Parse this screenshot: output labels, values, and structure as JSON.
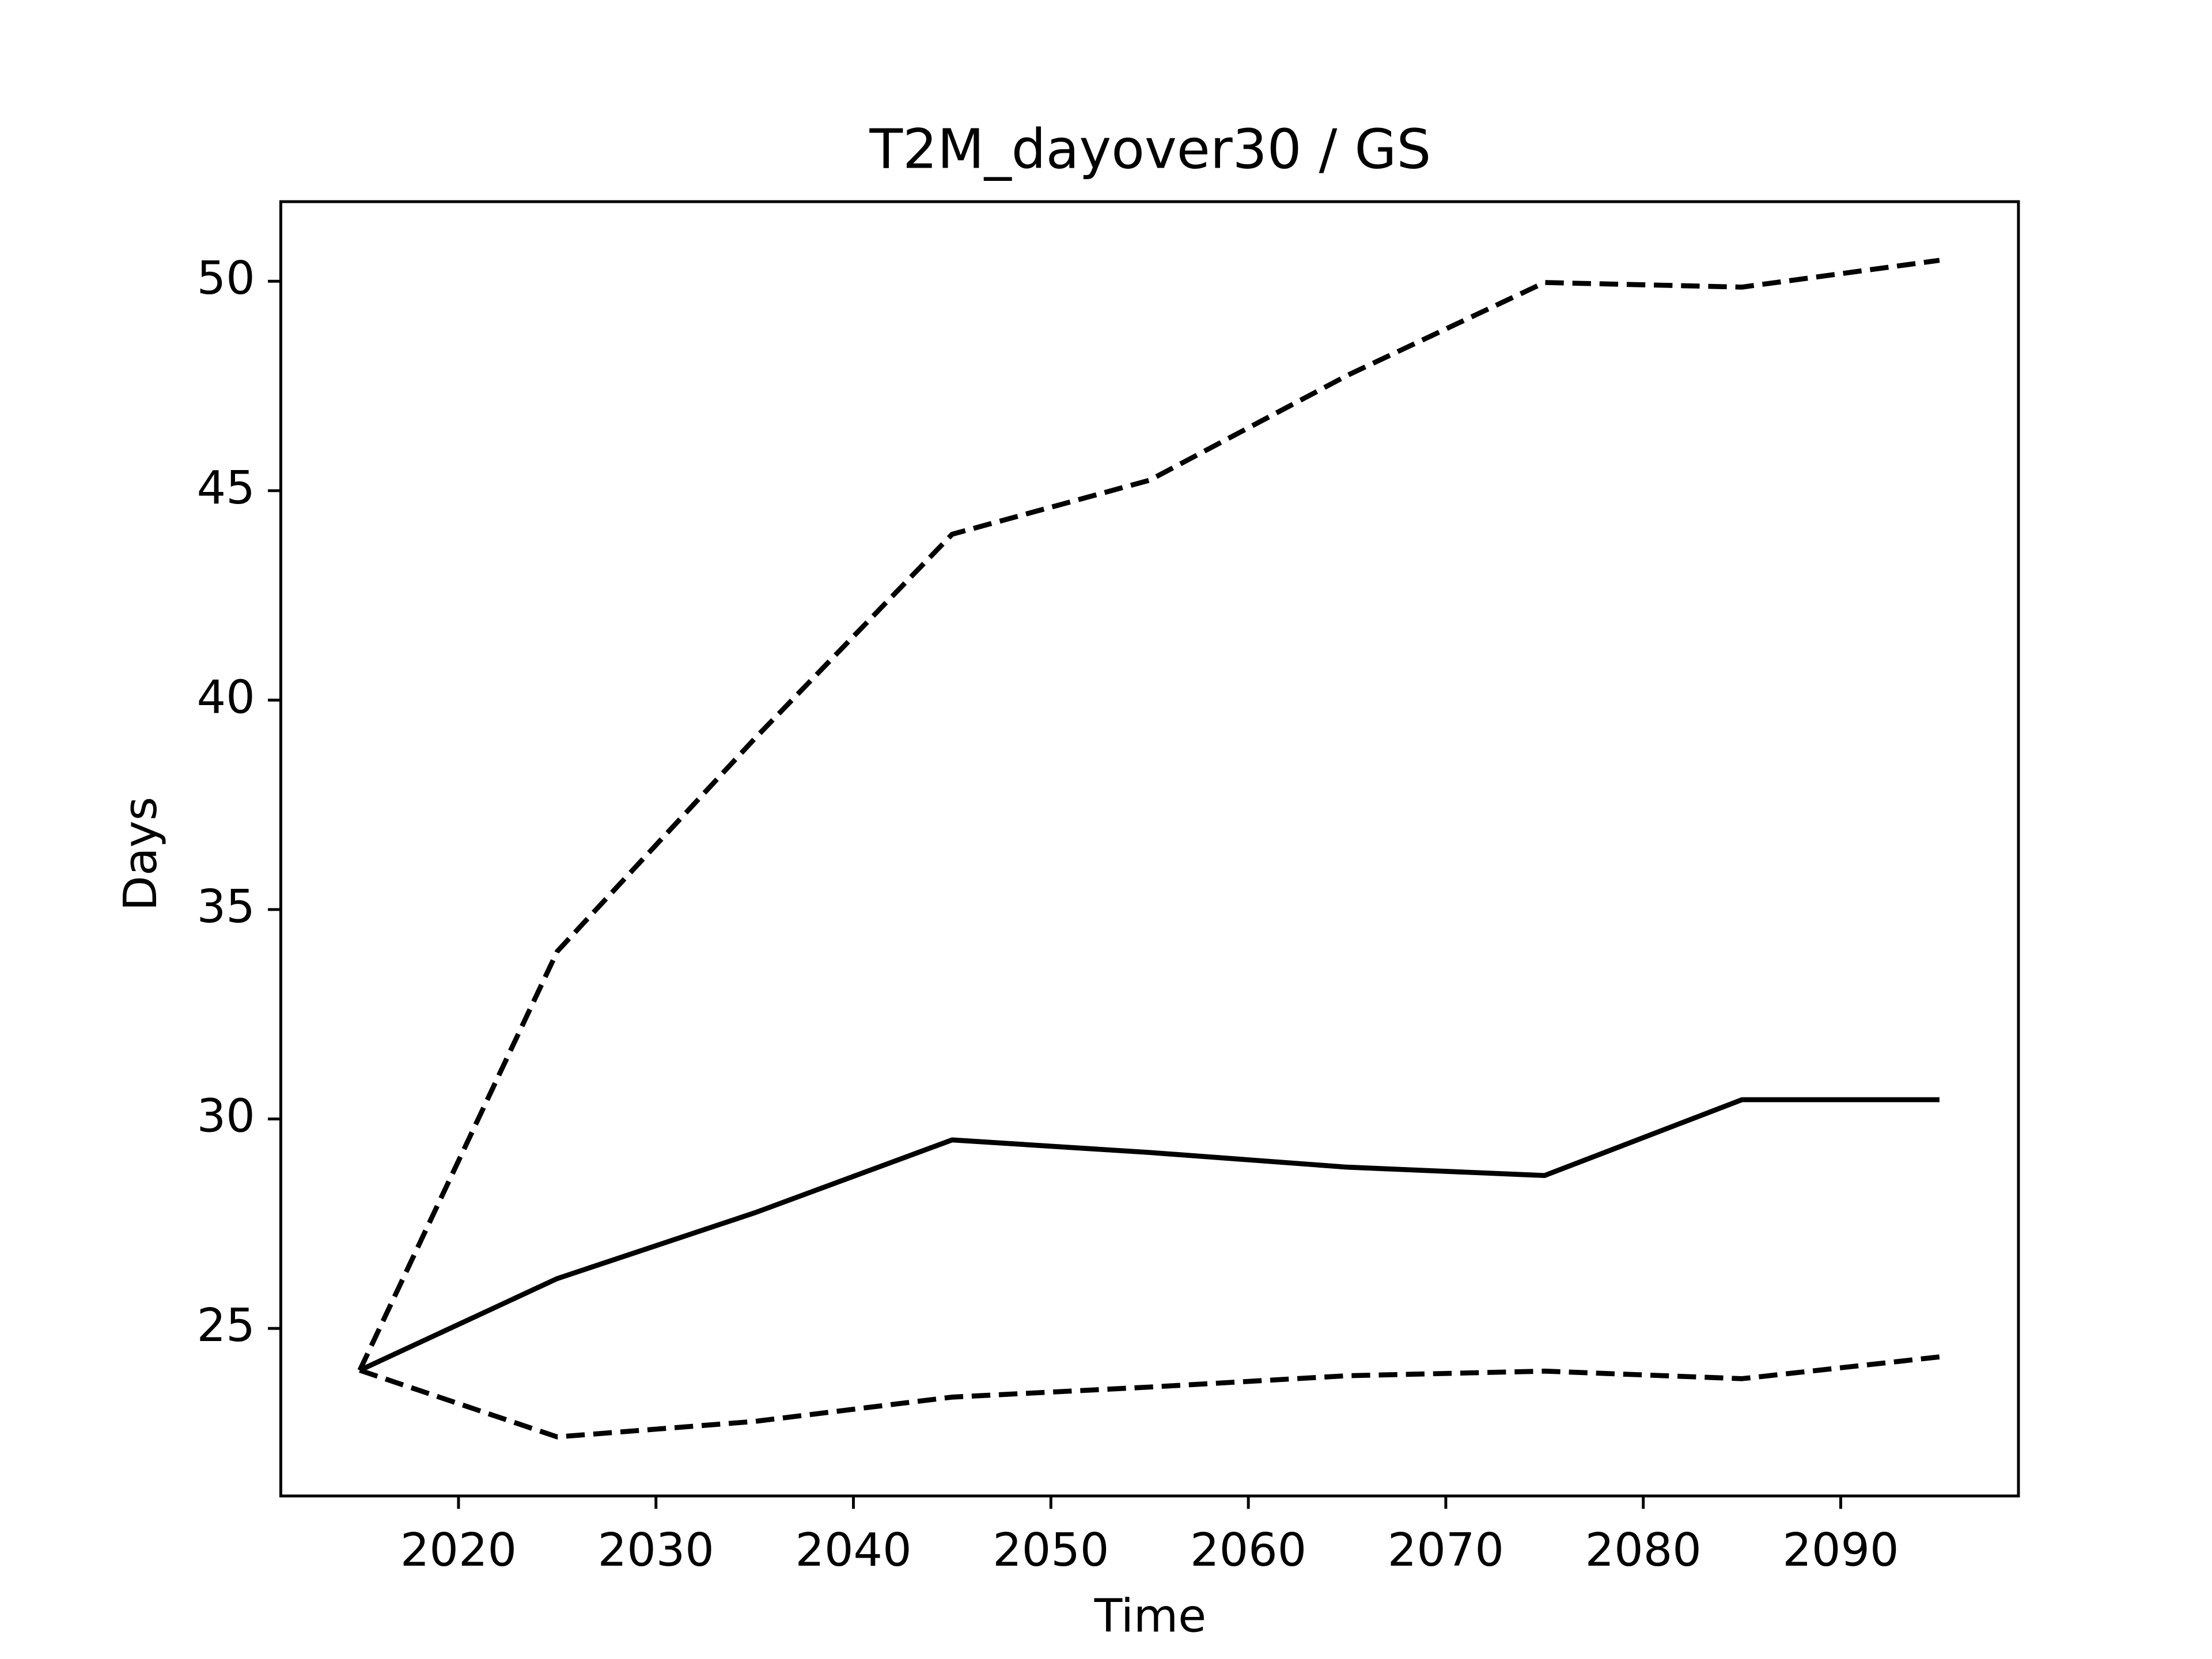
{
  "chart_data": {
    "type": "line",
    "title": "T2M_dayover30 / GS",
    "x_label": "Time",
    "y_label": "Days",
    "x": [
      2015,
      2025,
      2035,
      2045,
      2055,
      2065,
      2075,
      2085,
      2095
    ],
    "series": [
      {
        "color": "#000000",
        "linestyle": "solid",
        "values": [
          24.0,
          26.19,
          27.76,
          29.5,
          29.2,
          28.85,
          28.65,
          30.46,
          30.46
        ]
      },
      {
        "color": "#000000",
        "linestyle": "dashed",
        "values": [
          24.0,
          34.0,
          39.08,
          43.96,
          45.25,
          47.75,
          49.97,
          49.86,
          50.5
        ]
      },
      {
        "color": "#000000",
        "linestyle": "dashed",
        "values": [
          24.0,
          22.41,
          22.78,
          23.36,
          23.6,
          23.87,
          23.98,
          23.8,
          24.32
        ]
      }
    ],
    "xlim": [
      2011,
      2099
    ],
    "ylim": [
      21.0,
      51.9
    ],
    "xticks": [
      2020,
      2030,
      2040,
      2050,
      2060,
      2070,
      2080,
      2090
    ],
    "yticks": [
      25,
      30,
      35,
      40,
      45,
      50
    ],
    "grid": false
  }
}
